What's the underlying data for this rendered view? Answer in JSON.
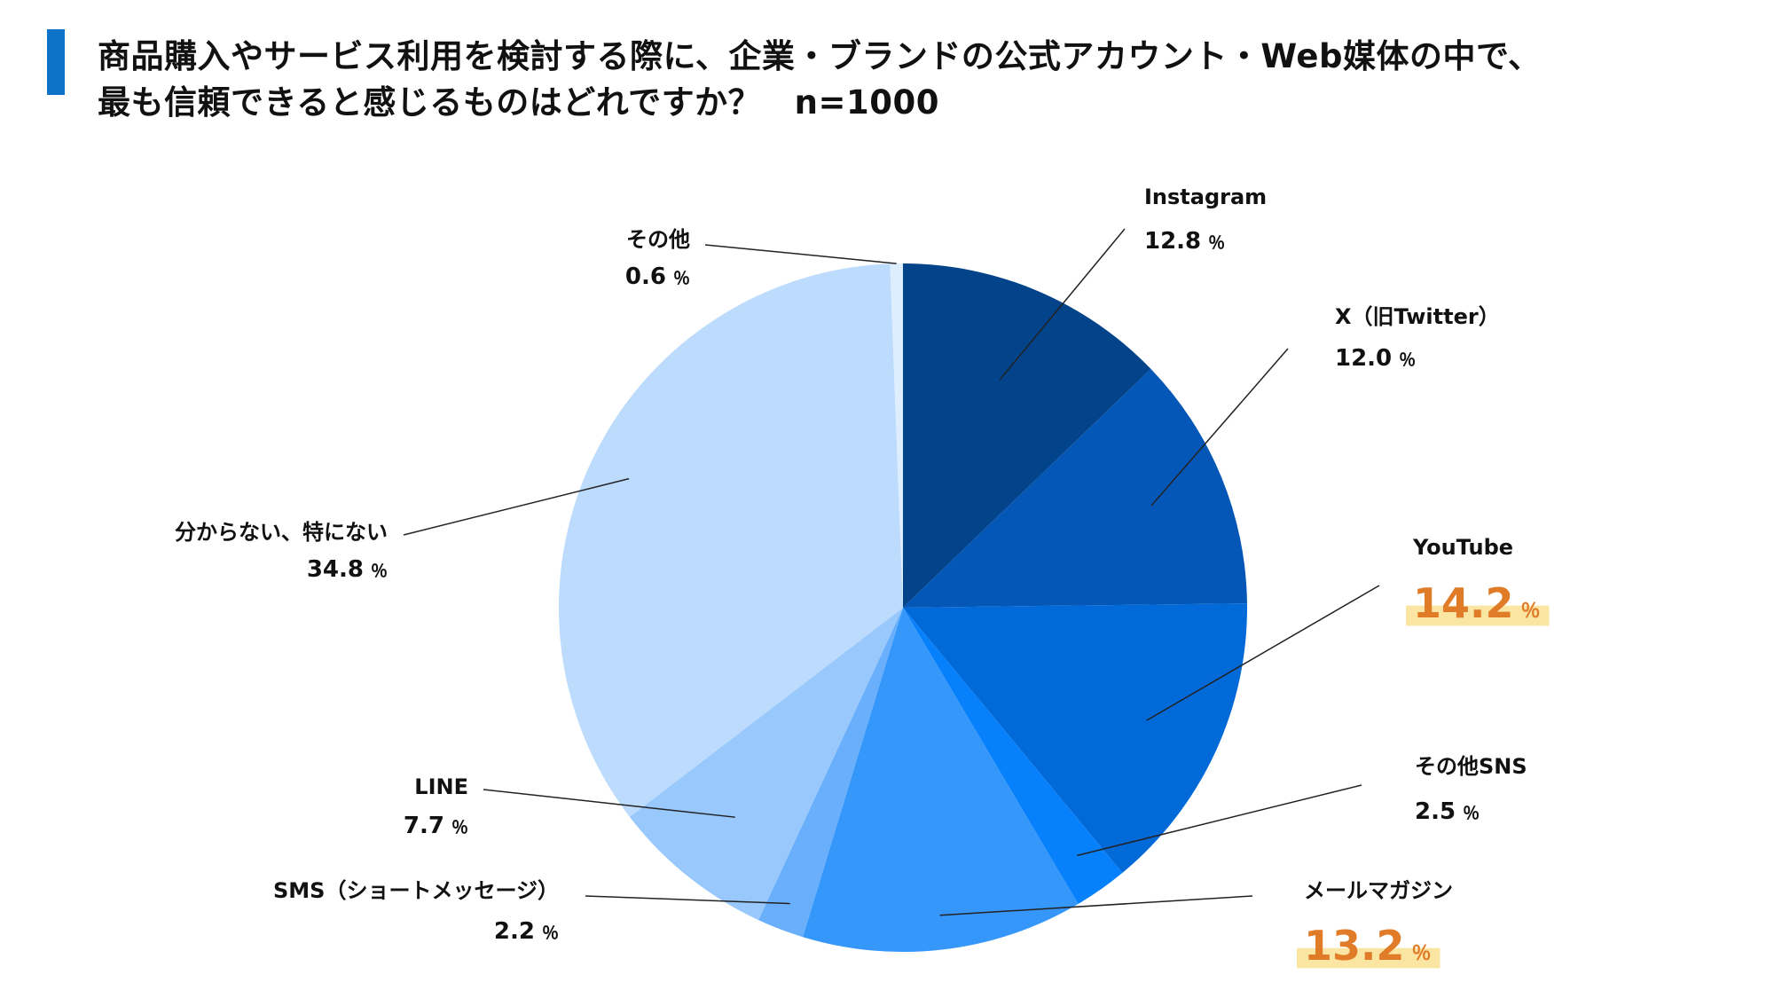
{
  "title": {
    "line1": "商品購入やサービス利用を検討する際に、企業・ブランドの公式アカウント・Web媒体の中で、",
    "line2": "最も信頼できると感じるものはどれですか？　n=1000"
  },
  "colors": {
    "title_accent": "#0c73c9",
    "highlight_text": "#e07b28",
    "highlight_bg": "#fbe5a3",
    "leader_line": "#222222"
  },
  "chart_data": {
    "type": "pie",
    "unit": "％",
    "start_angle_deg": 0,
    "direction": "clockwise",
    "slices": [
      {
        "label": "Instagram",
        "value": 12.8,
        "color": "#02438a",
        "highlight": false
      },
      {
        "label": "X（旧Twitter）",
        "value": 12.0,
        "color": "#0457b6",
        "highlight": false
      },
      {
        "label": "YouTube",
        "value": 14.2,
        "color": "#0269d9",
        "highlight": true
      },
      {
        "label": "その他SNS",
        "value": 2.5,
        "color": "#0781fb",
        "highlight": false
      },
      {
        "label": "メールマガジン",
        "value": 13.2,
        "color": "#3697fb",
        "highlight": true
      },
      {
        "label": "SMS（ショートメッセージ）",
        "value": 2.2,
        "color": "#6aaffb",
        "highlight": false
      },
      {
        "label": "LINE",
        "value": 7.7,
        "color": "#98c8fc",
        "highlight": false
      },
      {
        "label": "分からない、特にない",
        "value": 34.8,
        "color": "#bddcfd",
        "highlight": false
      },
      {
        "label": "その他",
        "value": 0.6,
        "color": "#dfeefe",
        "highlight": false
      }
    ]
  }
}
